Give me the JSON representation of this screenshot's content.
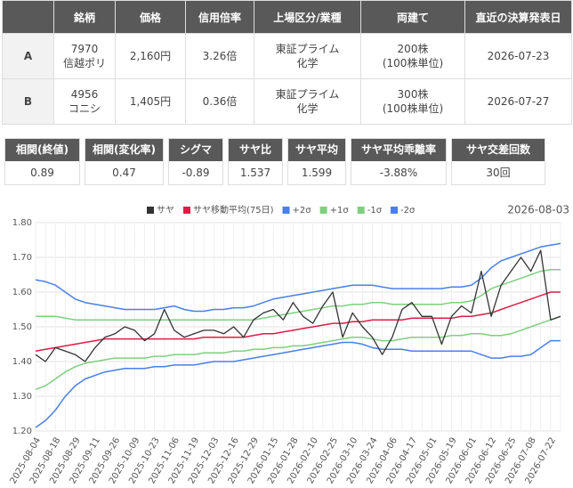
{
  "table": {
    "headers": [
      "銘柄",
      "価格",
      "信用倍率",
      "上場区分/業種",
      "両建て",
      "直近の決算発表日"
    ],
    "rows": [
      {
        "label": "A",
        "cells": [
          [
            "7970",
            "信越ポリ"
          ],
          "2,160円",
          "3.26倍",
          [
            "東証プライム",
            "化学"
          ],
          [
            "200株",
            "(100株単位)"
          ],
          "2026-07-23"
        ]
      },
      {
        "label": "B",
        "cells": [
          [
            "4956",
            "コニシ"
          ],
          "1,405円",
          "0.36倍",
          [
            "東証プライム",
            "化学"
          ],
          [
            "300株",
            "(100株単位)"
          ],
          "2026-07-27"
        ]
      }
    ]
  },
  "stats": {
    "headers": [
      "相関(終値)",
      "相関(変化率)",
      "シグマ",
      "サヤ比",
      "サヤ平均",
      "サヤ平均乖離率",
      "サヤ交差回数"
    ],
    "values": [
      "0.89",
      "0.47",
      "-0.89",
      "1.537",
      "1.599",
      "-3.88%",
      "30回"
    ]
  },
  "chart_data": {
    "type": "line",
    "date": "2026-08-03",
    "grid": true,
    "ylim": [
      1.2,
      1.8
    ],
    "yticks": [
      {
        "value": 1.2,
        "label": "1.20"
      },
      {
        "value": 1.3,
        "label": "1.30"
      },
      {
        "value": 1.4,
        "label": "1.40"
      },
      {
        "value": 1.5,
        "label": "1.50"
      },
      {
        "value": 1.6,
        "label": "1.60"
      },
      {
        "value": 1.7,
        "label": "1.70"
      },
      {
        "value": 1.8,
        "label": "1.80"
      }
    ],
    "categories": [
      "2025-08-04",
      null,
      "2025-08-18",
      null,
      "2025-08-29",
      null,
      "2025-09-11",
      null,
      "2025-09-26",
      null,
      "2025-10-09",
      null,
      "2025-10-23",
      null,
      "2025-11-06",
      null,
      "2025-11-19",
      null,
      "2025-12-03",
      null,
      "2025-12-16",
      null,
      "2025-12-29",
      null,
      "2026-01-15",
      null,
      "2026-01-28",
      null,
      "2026-02-10",
      null,
      "2026-02-25",
      null,
      "2026-03-10",
      null,
      "2026-03-24",
      null,
      "2026-04-06",
      null,
      "2026-04-17",
      null,
      "2026-05-01",
      null,
      "2026-05-19",
      null,
      "2026-06-01",
      null,
      "2026-06-12",
      null,
      "2026-06-25",
      null,
      "2026-07-08",
      null,
      "2026-07-22",
      null
    ],
    "series": [
      {
        "name": "サヤ",
        "color": "#333333",
        "values": [
          1.42,
          1.4,
          1.44,
          1.43,
          1.42,
          1.4,
          1.44,
          1.47,
          1.48,
          1.5,
          1.49,
          1.46,
          1.48,
          1.55,
          1.49,
          1.47,
          1.48,
          1.49,
          1.49,
          1.48,
          1.5,
          1.47,
          1.52,
          1.54,
          1.55,
          1.52,
          1.57,
          1.53,
          1.51,
          1.56,
          1.6,
          1.47,
          1.54,
          1.5,
          1.47,
          1.42,
          1.47,
          1.55,
          1.57,
          1.53,
          1.53,
          1.45,
          1.53,
          1.56,
          1.54,
          1.66,
          1.53,
          1.62,
          1.66,
          1.7,
          1.66,
          1.72,
          1.52,
          1.53
        ]
      },
      {
        "name": "サヤ移動平均(75日)",
        "color": "#dc1e46",
        "values": [
          1.43,
          1.435,
          1.44,
          1.445,
          1.45,
          1.455,
          1.46,
          1.465,
          1.465,
          1.465,
          1.465,
          1.465,
          1.465,
          1.465,
          1.465,
          1.465,
          1.465,
          1.47,
          1.47,
          1.47,
          1.47,
          1.47,
          1.475,
          1.48,
          1.48,
          1.485,
          1.49,
          1.495,
          1.5,
          1.505,
          1.51,
          1.51,
          1.515,
          1.515,
          1.52,
          1.52,
          1.52,
          1.52,
          1.525,
          1.525,
          1.525,
          1.525,
          1.525,
          1.53,
          1.53,
          1.535,
          1.54,
          1.55,
          1.56,
          1.57,
          1.58,
          1.59,
          1.6,
          1.6
        ]
      },
      {
        "name": "+2σ",
        "color": "#4a7fe8",
        "values": [
          1.635,
          1.63,
          1.62,
          1.6,
          1.58,
          1.57,
          1.565,
          1.56,
          1.555,
          1.55,
          1.55,
          1.55,
          1.55,
          1.555,
          1.56,
          1.55,
          1.545,
          1.545,
          1.55,
          1.55,
          1.555,
          1.555,
          1.56,
          1.57,
          1.58,
          1.585,
          1.59,
          1.595,
          1.6,
          1.605,
          1.61,
          1.615,
          1.62,
          1.62,
          1.62,
          1.615,
          1.61,
          1.61,
          1.61,
          1.61,
          1.61,
          1.61,
          1.615,
          1.615,
          1.62,
          1.64,
          1.67,
          1.69,
          1.7,
          1.71,
          1.72,
          1.73,
          1.735,
          1.74
        ]
      },
      {
        "name": "+1σ",
        "color": "#7fcf7f",
        "values": [
          1.53,
          1.53,
          1.53,
          1.525,
          1.52,
          1.52,
          1.52,
          1.52,
          1.52,
          1.52,
          1.52,
          1.52,
          1.52,
          1.52,
          1.52,
          1.52,
          1.52,
          1.52,
          1.52,
          1.52,
          1.52,
          1.52,
          1.52,
          1.525,
          1.53,
          1.535,
          1.54,
          1.545,
          1.55,
          1.555,
          1.56,
          1.56,
          1.565,
          1.565,
          1.57,
          1.57,
          1.565,
          1.565,
          1.565,
          1.565,
          1.565,
          1.565,
          1.57,
          1.57,
          1.575,
          1.59,
          1.61,
          1.62,
          1.63,
          1.64,
          1.65,
          1.66,
          1.665,
          1.665
        ]
      },
      {
        "name": "-1σ",
        "color": "#7fcf7f",
        "values": [
          1.32,
          1.33,
          1.35,
          1.37,
          1.385,
          1.395,
          1.4,
          1.405,
          1.41,
          1.41,
          1.41,
          1.41,
          1.415,
          1.415,
          1.42,
          1.42,
          1.42,
          1.425,
          1.425,
          1.425,
          1.43,
          1.43,
          1.435,
          1.435,
          1.44,
          1.44,
          1.445,
          1.445,
          1.45,
          1.455,
          1.46,
          1.465,
          1.47,
          1.47,
          1.465,
          1.46,
          1.46,
          1.465,
          1.47,
          1.47,
          1.47,
          1.47,
          1.475,
          1.475,
          1.48,
          1.48,
          1.475,
          1.475,
          1.48,
          1.49,
          1.5,
          1.51,
          1.52,
          1.53
        ]
      },
      {
        "name": "-2σ",
        "color": "#4a7fe8",
        "values": [
          1.21,
          1.23,
          1.26,
          1.3,
          1.33,
          1.35,
          1.36,
          1.37,
          1.375,
          1.38,
          1.38,
          1.38,
          1.385,
          1.385,
          1.39,
          1.39,
          1.39,
          1.395,
          1.4,
          1.4,
          1.4,
          1.405,
          1.41,
          1.415,
          1.42,
          1.425,
          1.43,
          1.435,
          1.44,
          1.445,
          1.45,
          1.455,
          1.455,
          1.45,
          1.44,
          1.435,
          1.435,
          1.435,
          1.43,
          1.43,
          1.43,
          1.43,
          1.43,
          1.43,
          1.43,
          1.42,
          1.41,
          1.41,
          1.415,
          1.415,
          1.42,
          1.44,
          1.46,
          1.46
        ]
      }
    ]
  }
}
